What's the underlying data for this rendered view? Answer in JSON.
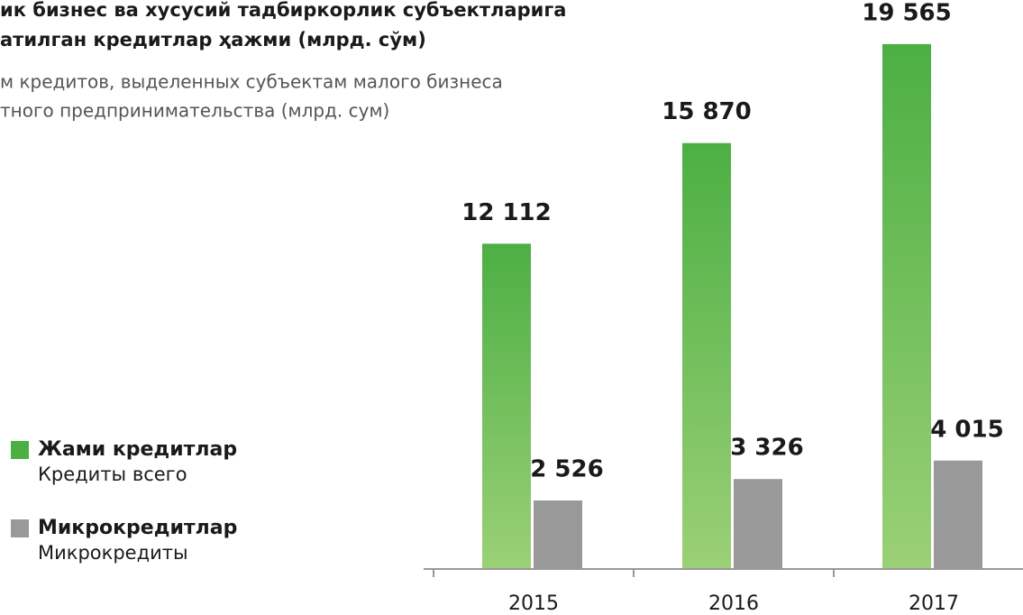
{
  "chart_data": {
    "type": "bar",
    "title": [
      "ик бизнес ва хусусий тадбиркорлик субъектларига",
      "атилган кредитлар ҳажми (млрд. сўм)"
    ],
    "subtitle": [
      "м кредитов, выделенных субъектам малого бизнеса",
      "тного предпринимательства (млрд. сум)"
    ],
    "categories": [
      "2015",
      "2016",
      "2017"
    ],
    "series": [
      {
        "name": "Жами кредитлар",
        "subname": "Кредиты всего",
        "color": "#4caf44",
        "values": [
          12112,
          15870,
          19565
        ],
        "value_labels": [
          "12 112",
          "15 870",
          "19 565"
        ]
      },
      {
        "name": "Микрокредитлар",
        "subname": "Микрокредиты",
        "color": "#999999",
        "values": [
          2526,
          3326,
          4015
        ],
        "value_labels": [
          "2 526",
          "3 326",
          "4 015"
        ]
      }
    ],
    "ylim": [
      0,
      20000
    ]
  }
}
